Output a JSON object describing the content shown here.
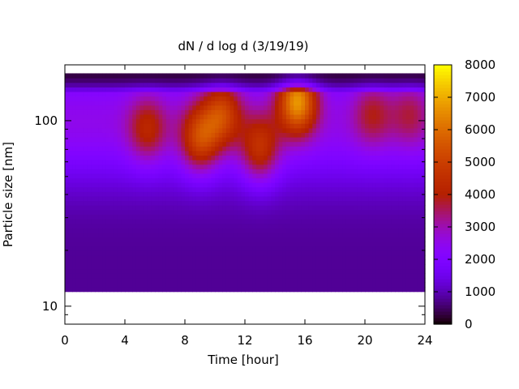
{
  "chart_data": {
    "type": "heatmap",
    "title": "dN / d log d (3/19/19)",
    "xlabel": "Time [hour]",
    "ylabel": "Particle size [nm]",
    "xlim": [
      0,
      24
    ],
    "ylim": [
      8,
      200
    ],
    "y_scale": "log",
    "x_ticks": [
      0,
      4,
      8,
      12,
      16,
      20,
      24
    ],
    "y_ticks": [
      10,
      100
    ],
    "colorbar": {
      "range": [
        0,
        8000
      ],
      "ticks": [
        0,
        1000,
        2000,
        3000,
        4000,
        5000,
        6000,
        7000,
        8000
      ],
      "palette": "gnuplot"
    },
    "size_range_nm": [
      12,
      180
    ],
    "hot_spots": [
      {
        "time": 5.5,
        "size": 90,
        "value": 4200
      },
      {
        "time": 9.0,
        "size": 80,
        "value": 5200
      },
      {
        "time": 10.5,
        "size": 110,
        "value": 5000
      },
      {
        "time": 13.0,
        "size": 70,
        "value": 4800
      },
      {
        "time": 15.5,
        "size": 130,
        "value": 6800
      },
      {
        "time": 20.5,
        "size": 110,
        "value": 3800
      },
      {
        "time": 23.0,
        "size": 110,
        "value": 3600
      }
    ]
  }
}
